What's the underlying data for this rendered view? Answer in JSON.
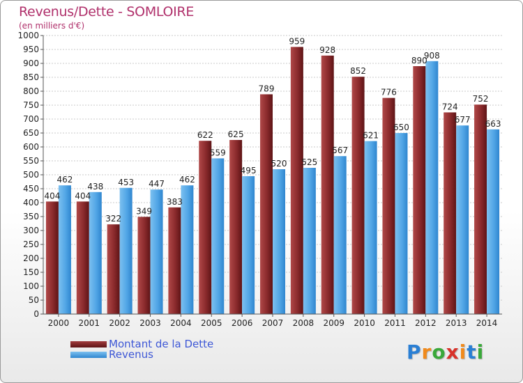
{
  "header": {
    "title": "Revenus/Dette - SOMLOIRE",
    "subtitle": "(en milliers d'€)"
  },
  "logo": {
    "text": "Proxiti"
  },
  "colors": {
    "dette": "#7a1f22",
    "revenus": "#4da3e6",
    "title": "#b0306b",
    "legend_text": "#3d57d6"
  },
  "chart_data": {
    "type": "bar",
    "categories": [
      "2000",
      "2001",
      "2002",
      "2003",
      "2004",
      "2005",
      "2006",
      "2007",
      "2008",
      "2009",
      "2010",
      "2011",
      "2012",
      "2013",
      "2014"
    ],
    "series": [
      {
        "name": "Montant de la Dette",
        "values": [
          404,
          404,
          322,
          349,
          383,
          622,
          625,
          789,
          959,
          928,
          852,
          776,
          890,
          724,
          752
        ]
      },
      {
        "name": "Revenus",
        "values": [
          462,
          438,
          453,
          447,
          462,
          559,
          495,
          520,
          525,
          567,
          621,
          650,
          908,
          677,
          663
        ]
      }
    ],
    "ylim": [
      0,
      1000
    ],
    "yticks": [
      0,
      50,
      100,
      150,
      200,
      250,
      300,
      350,
      400,
      450,
      500,
      550,
      600,
      650,
      700,
      750,
      800,
      850,
      900,
      950,
      1000
    ],
    "grid": true,
    "legend": "bottom-left"
  }
}
